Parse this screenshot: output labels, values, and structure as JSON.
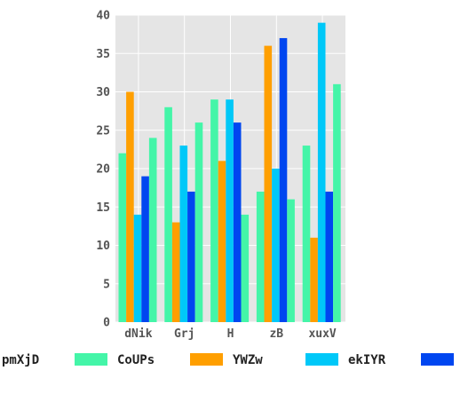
{
  "chart_data": {
    "type": "bar",
    "title": "",
    "xlabel": "",
    "ylabel": "",
    "categories": [
      "dNik",
      "Grj",
      "H",
      "zB",
      "xuxV"
    ],
    "ylim": [
      0,
      40
    ],
    "yticks": [
      0,
      5,
      10,
      15,
      20,
      25,
      30,
      35,
      40
    ],
    "grid": true,
    "legend_position": "bottom",
    "series": [
      {
        "name": "pmXjD",
        "color": "#44f5a8",
        "values": [
          22,
          28,
          29,
          17,
          23
        ]
      },
      {
        "name": "CoUPs",
        "color": "#ff9f00",
        "values": [
          30,
          13,
          21,
          36,
          11
        ]
      },
      {
        "name": "YWZw",
        "color": "#00c8f8",
        "values": [
          14,
          23,
          29,
          20,
          39
        ]
      },
      {
        "name": "ekIYR",
        "color": "#0046f0",
        "values": [
          19,
          17,
          26,
          37,
          17
        ]
      },
      {
        "name": "",
        "color": "#44f5a8",
        "values": [
          24,
          26,
          14,
          16,
          31
        ]
      }
    ]
  }
}
